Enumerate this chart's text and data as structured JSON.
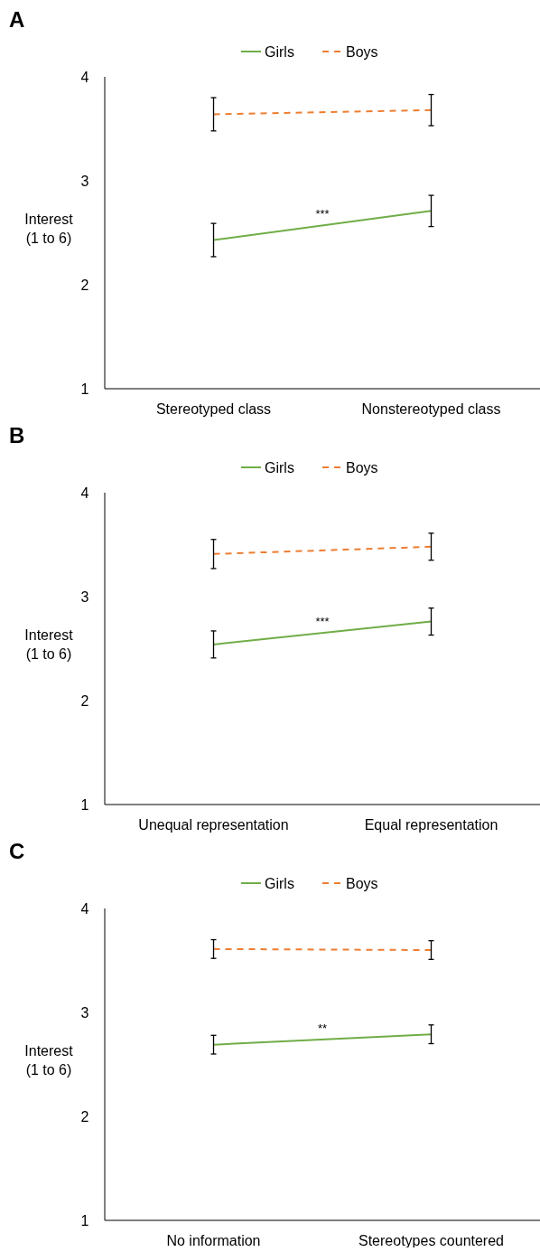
{
  "chart_data": [
    {
      "type": "line",
      "title": "A",
      "ylabel": "Interest\n(1 to 6)",
      "categories": [
        "Stereotyped class",
        "Nonstereotyped class"
      ],
      "ylim": [
        1,
        4
      ],
      "yticks": [
        1,
        2,
        3,
        4
      ],
      "grid": false,
      "legend": "top",
      "annotations": [
        "***"
      ],
      "series": [
        {
          "name": "Girls",
          "color": "#70ad47",
          "line_style": "solid",
          "values": [
            2.43,
            2.71
          ],
          "errors": [
            0.16,
            0.15
          ]
        },
        {
          "name": "Boys",
          "color": "#ed7d31",
          "line_style": "dashed",
          "values": [
            3.64,
            3.68
          ],
          "errors": [
            0.16,
            0.15
          ]
        }
      ]
    },
    {
      "type": "line",
      "title": "B",
      "ylabel": "Interest\n(1 to 6)",
      "categories": [
        "Unequal representation",
        "Equal representation"
      ],
      "ylim": [
        1,
        4
      ],
      "yticks": [
        1,
        2,
        3,
        4
      ],
      "grid": false,
      "legend": "top",
      "annotations": [
        "***"
      ],
      "series": [
        {
          "name": "Girls",
          "color": "#70ad47",
          "line_style": "solid",
          "values": [
            2.54,
            2.76
          ],
          "errors": [
            0.13,
            0.13
          ]
        },
        {
          "name": "Boys",
          "color": "#ed7d31",
          "line_style": "dashed",
          "values": [
            3.41,
            3.48
          ],
          "errors": [
            0.14,
            0.13
          ]
        }
      ]
    },
    {
      "type": "line",
      "title": "C",
      "ylabel": "Interest\n(1 to 6)",
      "categories": [
        "No information",
        "Stereotypes countered"
      ],
      "ylim": [
        1,
        4
      ],
      "yticks": [
        1,
        2,
        3,
        4
      ],
      "grid": false,
      "legend": "top",
      "annotations": [
        "**"
      ],
      "series": [
        {
          "name": "Girls",
          "color": "#70ad47",
          "line_style": "solid",
          "values": [
            2.69,
            2.79
          ],
          "errors": [
            0.09,
            0.09
          ]
        },
        {
          "name": "Boys",
          "color": "#ed7d31",
          "line_style": "dashed",
          "values": [
            3.61,
            3.6
          ],
          "errors": [
            0.09,
            0.09
          ]
        }
      ]
    }
  ]
}
